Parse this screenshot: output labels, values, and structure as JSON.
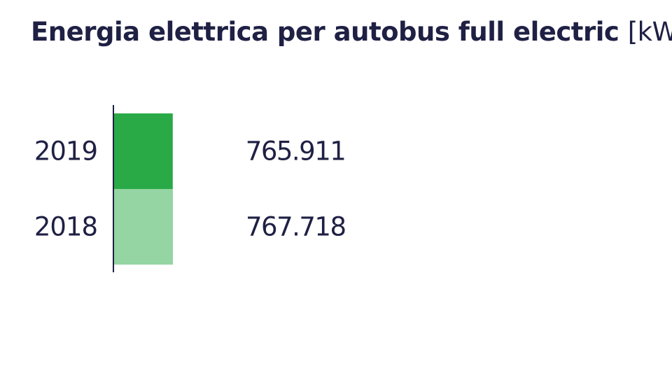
{
  "chart_data": {
    "type": "bar",
    "orientation": "horizontal",
    "title": "Energia elettrica per autobus full electric",
    "unit": "[kWh]",
    "xlabel": "",
    "ylabel": "",
    "categories": [
      "2019",
      "2018"
    ],
    "values": [
      765911,
      767718
    ],
    "value_labels": [
      "765.911",
      "767.718"
    ],
    "colors": [
      "#29aa47",
      "#94d5a3"
    ],
    "axis_color": "#1f2044",
    "grid": false,
    "legend": "none"
  }
}
